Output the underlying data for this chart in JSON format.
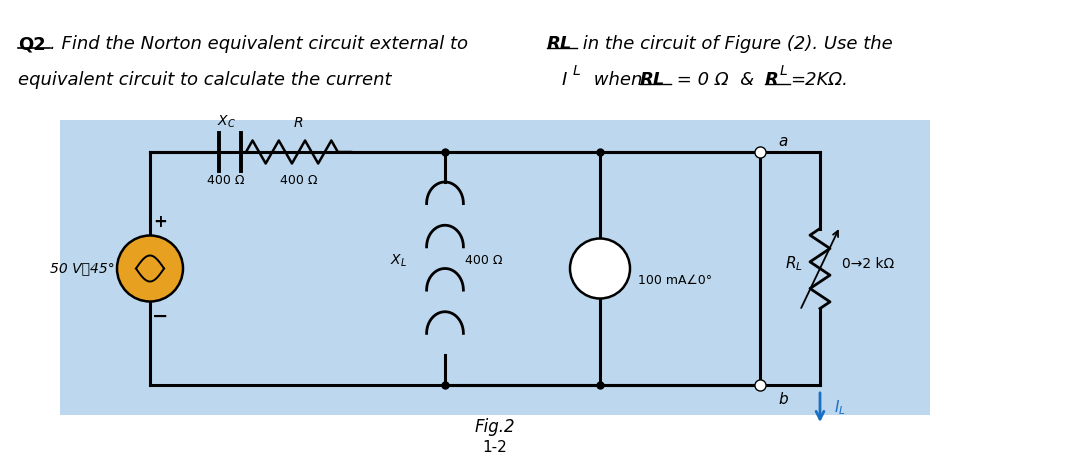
{
  "bg_color": "#bdd8ee",
  "white_bg": "#ffffff",
  "source_color": "#e8a020",
  "node_a": "a",
  "node_b": "b",
  "vol_source_label": "50 V⑐45°",
  "cur_source_label": "100 mA∠0°",
  "xc_label": "$X_C$",
  "r_label": "$R$",
  "xl_label": "$X_L$",
  "rl_label": "$R_L$",
  "il_label": "$I_L$",
  "val_400_xc": "400 Ω",
  "val_400_r": "400 Ω",
  "val_400_xl": "400 Ω",
  "rl_range": "0→2 kΩ",
  "fig_label": "Fig.2",
  "page_label": "1-2"
}
